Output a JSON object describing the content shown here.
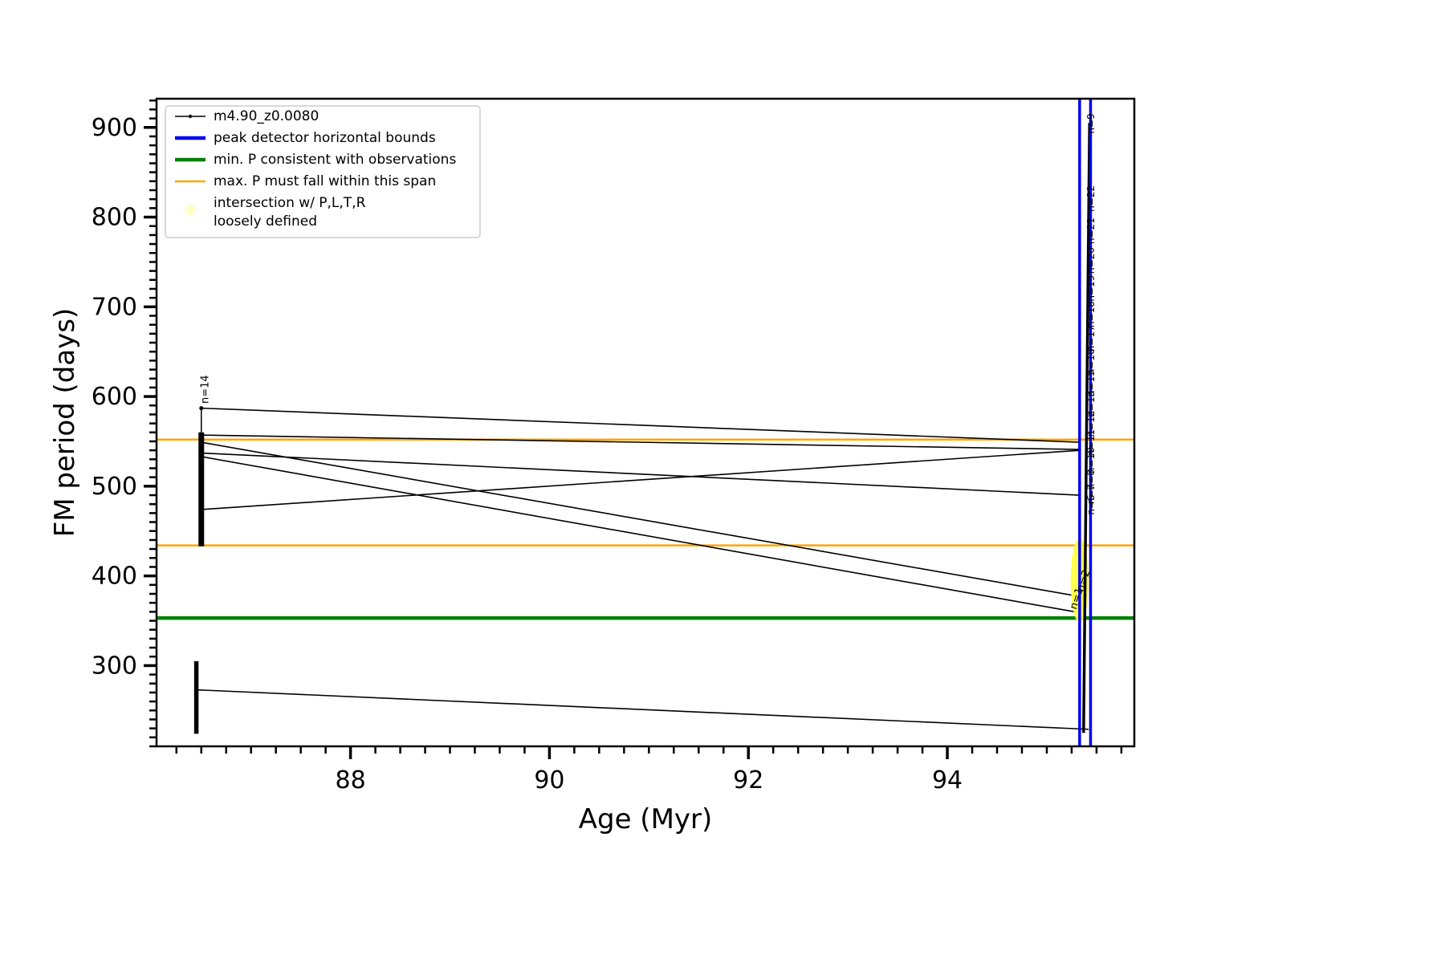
{
  "chart_data": {
    "type": "line",
    "title": "",
    "xlabel": "Age (Myr)",
    "ylabel": "FM period (days)",
    "xlim": [
      86.05,
      95.88
    ],
    "ylim": [
      210,
      932
    ],
    "x_ticks": [
      88,
      90,
      92,
      94
    ],
    "x_minor_step": 0.25,
    "y_ticks": [
      300,
      400,
      500,
      600,
      700,
      800,
      900
    ],
    "y_minor_step": 10,
    "grid": false,
    "legend_position": "upper-left",
    "legend": {
      "items": [
        {
          "label": "m4.90_z0.0080",
          "color": "#000000",
          "marker": "line-dot"
        },
        {
          "label": "peak detector horizontal bounds",
          "color": "#0000ee",
          "marker": "thick-line"
        },
        {
          "label": "min. P consistent with observations",
          "color": "#008000",
          "marker": "thick-line"
        },
        {
          "label": "max. P must fall within this span",
          "color": "#ffa500",
          "marker": "line"
        },
        {
          "label": "intersection w/ P,L,T,R",
          "label2": "loosely defined",
          "color": "#ffffbb",
          "marker": "dot"
        }
      ]
    },
    "hlines": [
      {
        "y": 552,
        "color": "#ffa500",
        "width": 2.5,
        "name": "max-P-upper-bound"
      },
      {
        "y": 434,
        "color": "#ffa500",
        "width": 2.5,
        "name": "max-P-lower-bound"
      },
      {
        "y": 353,
        "color": "#008000",
        "width": 4.5,
        "name": "min-P-observed"
      }
    ],
    "vlines": [
      {
        "x": 95.33,
        "color": "#0000ee",
        "width": 3.5,
        "name": "peak-bound-left"
      },
      {
        "x": 95.44,
        "color": "#0000ee",
        "width": 3.5,
        "name": "peak-bound-right"
      }
    ],
    "segments": [
      {
        "x1": 86.5,
        "y1": 587,
        "x2": 95.33,
        "y2": 549
      },
      {
        "x1": 86.5,
        "y1": 557,
        "x2": 95.33,
        "y2": 541
      },
      {
        "x1": 86.5,
        "y1": 549,
        "x2": 95.33,
        "y2": 377
      },
      {
        "x1": 86.5,
        "y1": 537,
        "x2": 95.33,
        "y2": 490
      },
      {
        "x1": 86.5,
        "y1": 533,
        "x2": 95.33,
        "y2": 359
      },
      {
        "x1": 86.5,
        "y1": 474,
        "x2": 95.33,
        "y2": 540
      },
      {
        "x1": 86.45,
        "y1": 273,
        "x2": 95.42,
        "y2": 229
      }
    ],
    "clusters": [
      {
        "x": 86.5,
        "y1": 433,
        "y2": 560,
        "width": 7
      },
      {
        "x": 86.5,
        "y1": 560,
        "y2": 585,
        "width": 1.5
      },
      {
        "x": 86.45,
        "y1": 224,
        "y2": 305,
        "width": 5.5
      }
    ],
    "marker_points": [
      {
        "x": 86.5,
        "y": 587,
        "r": 2.5
      }
    ],
    "right_track": {
      "x1": 95.37,
      "y1": 225,
      "x2": 95.43,
      "y2": 905,
      "width": 3.5,
      "color": "#000000"
    },
    "highlight_ellipse": {
      "x": 95.33,
      "y": 395,
      "rx_myr": 0.09,
      "ry_days": 47,
      "color": "#ffff42",
      "opacity": 0.95
    },
    "annotations": [
      {
        "x": 86.57,
        "y": 592,
        "text": "n=14",
        "rot": -90,
        "size": 13
      },
      {
        "x": 95.475,
        "y": 893,
        "text": "n=9",
        "rot": -90,
        "size": 12
      },
      {
        "x": 95.475,
        "y": 806,
        "text": "n=22",
        "rot": -90,
        "size": 12
      },
      {
        "x": 95.475,
        "y": 770,
        "text": "n=21",
        "rot": -90,
        "size": 12
      },
      {
        "x": 95.475,
        "y": 737,
        "text": "n=20",
        "rot": -90,
        "size": 12
      },
      {
        "x": 95.475,
        "y": 706,
        "text": "n=19",
        "rot": -90,
        "size": 12
      },
      {
        "x": 95.475,
        "y": 677,
        "text": "n=18",
        "rot": -90,
        "size": 12
      },
      {
        "x": 95.475,
        "y": 650,
        "text": "n=17",
        "rot": -90,
        "size": 12
      },
      {
        "x": 95.475,
        "y": 624,
        "text": "n=16",
        "rot": -90,
        "size": 12
      },
      {
        "x": 95.475,
        "y": 600,
        "text": "n=15",
        "rot": -90,
        "size": 12
      },
      {
        "x": 95.475,
        "y": 577,
        "text": "n=13",
        "rot": -90,
        "size": 12
      },
      {
        "x": 95.475,
        "y": 555,
        "text": "n=12",
        "rot": -90,
        "size": 12
      },
      {
        "x": 95.475,
        "y": 534,
        "text": "n=11",
        "rot": -90,
        "size": 12
      },
      {
        "x": 95.475,
        "y": 514,
        "text": "n=10",
        "rot": -90,
        "size": 12
      },
      {
        "x": 95.475,
        "y": 496,
        "text": "n=8",
        "rot": -90,
        "size": 12
      },
      {
        "x": 95.475,
        "y": 480,
        "text": "n=7",
        "rot": -90,
        "size": 12
      },
      {
        "x": 95.475,
        "y": 468,
        "text": "n=6",
        "rot": -90,
        "size": 12
      },
      {
        "x": 95.295,
        "y": 362,
        "text": "n=1",
        "rot": -72,
        "size": 13
      },
      {
        "x": 95.365,
        "y": 382,
        "text": "n=2",
        "rot": -72,
        "size": 13
      }
    ],
    "colors": {
      "axes": "#000000",
      "series": "#000000",
      "peak_bounds": "#0000ee",
      "min_P": "#008000",
      "max_P_span": "#ffa500",
      "intersection": "#ffff42",
      "background": "#ffffff"
    }
  }
}
